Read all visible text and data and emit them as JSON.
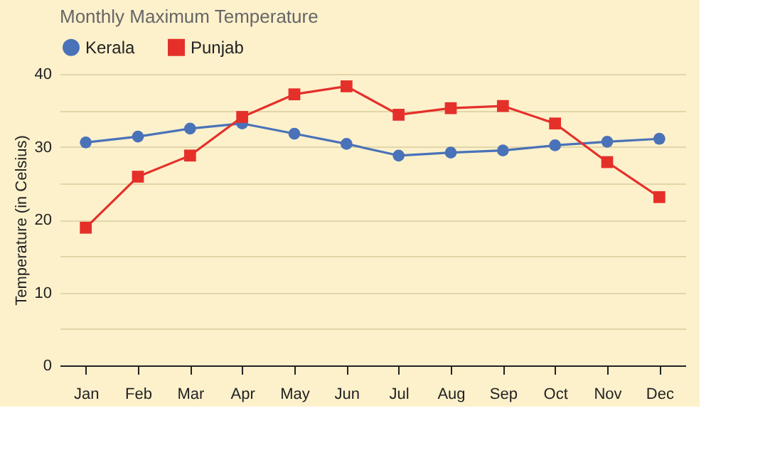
{
  "chart_data": {
    "type": "line",
    "title": "Monthly Maximum Temperature",
    "ylabel": "Temperature (in Celsius)",
    "categories": [
      "Jan",
      "Feb",
      "Mar",
      "Apr",
      "May",
      "Jun",
      "Jul",
      "Aug",
      "Sep",
      "Oct",
      "Nov",
      "Dec"
    ],
    "series": [
      {
        "name": "Kerala",
        "color": "#4a72b8",
        "marker": "circle",
        "values": [
          30.6,
          31.4,
          32.5,
          33.2,
          31.8,
          30.4,
          28.8,
          29.2,
          29.5,
          30.2,
          30.7,
          31.1
        ]
      },
      {
        "name": "Punjab",
        "color": "#e5302a",
        "marker": "square",
        "values": [
          18.9,
          25.9,
          28.8,
          34.1,
          37.2,
          38.3,
          34.4,
          35.3,
          35.6,
          33.2,
          27.9,
          23.1
        ]
      }
    ],
    "ylim": [
      0,
      40
    ],
    "yticks": [
      0,
      {
        "value": 5,
        "label": null
      },
      10,
      {
        "value": 15,
        "label": null
      },
      20,
      {
        "value": 25,
        "label": null
      },
      30,
      {
        "value": 35,
        "label": null
      },
      40
    ],
    "grid": "y",
    "legend": "top",
    "line_style": "solid"
  }
}
